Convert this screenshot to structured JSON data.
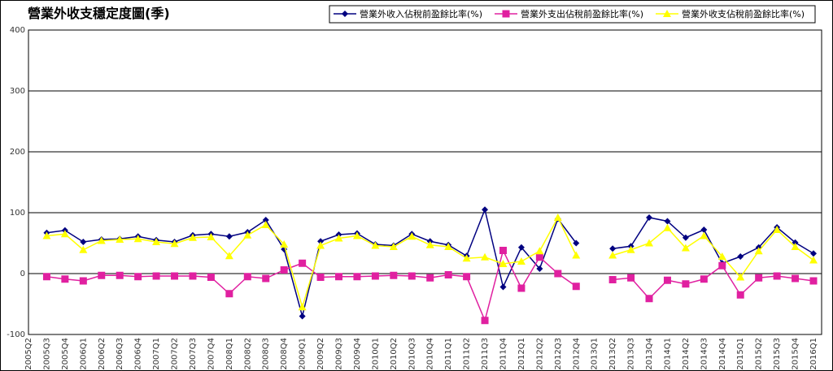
{
  "chart_data": {
    "type": "line",
    "title": "營業外收支穩定度圖(季)",
    "categories": [
      "2005Q2",
      "2005Q3",
      "2005Q4",
      "2006Q1",
      "2006Q2",
      "2006Q3",
      "2006Q4",
      "2007Q1",
      "2007Q2",
      "2007Q3",
      "2007Q4",
      "2008Q1",
      "2008Q2",
      "2008Q3",
      "2008Q4",
      "2009Q1",
      "2009Q2",
      "2009Q3",
      "2009Q4",
      "2010Q1",
      "2010Q2",
      "2010Q3",
      "2010Q4",
      "2011Q1",
      "2011Q2",
      "2011Q3",
      "2011Q4",
      "2012Q1",
      "2012Q2",
      "2012Q3",
      "2012Q4",
      "2013Q1",
      "2013Q2",
      "2013Q3",
      "2013Q4",
      "2014Q1",
      "2014Q2",
      "2014Q3",
      "2014Q4",
      "2015Q1",
      "2015Q2",
      "2015Q3",
      "2015Q4",
      "2016Q1"
    ],
    "series": [
      {
        "name": "營業外收入佔稅前盈餘比率(%)",
        "color": "#000080",
        "marker": "diamond",
        "values": [
          null,
          67,
          71,
          52,
          56,
          57,
          61,
          55,
          52,
          63,
          65,
          61,
          68,
          88,
          40,
          -70,
          53,
          64,
          66,
          48,
          46,
          65,
          53,
          47,
          29,
          105,
          -22,
          43,
          8,
          90,
          50,
          null,
          41,
          45,
          92,
          86,
          59,
          72,
          17,
          28,
          43,
          76,
          51,
          33
        ]
      },
      {
        "name": "營業外支出佔稅前盈餘比率(%)",
        "color": "#e020a0",
        "marker": "square",
        "values": [
          null,
          -5,
          -9,
          -12,
          -3,
          -3,
          -5,
          -4,
          -4,
          -4,
          -6,
          -33,
          -5,
          -8,
          6,
          17,
          -6,
          -5,
          -5,
          -4,
          -3,
          -4,
          -7,
          -2,
          -5,
          -77,
          38,
          -24,
          27,
          0,
          -21,
          null,
          -10,
          -7,
          -41,
          -11,
          -17,
          -9,
          13,
          -35,
          -7,
          -4,
          -8,
          -12
        ]
      },
      {
        "name": "營業外收支佔稅前盈餘比率(%)",
        "color": "#ffff00",
        "marker": "triangle",
        "values": [
          null,
          62,
          65,
          39,
          54,
          56,
          57,
          52,
          49,
          59,
          60,
          29,
          63,
          80,
          48,
          -55,
          46,
          58,
          62,
          46,
          44,
          61,
          47,
          44,
          25,
          27,
          16,
          20,
          37,
          92,
          30,
          null,
          30,
          39,
          50,
          75,
          42,
          62,
          28,
          -6,
          37,
          72,
          44,
          22
        ]
      }
    ],
    "ylim": [
      -100,
      400
    ],
    "yticks": [
      -100,
      0,
      100,
      200,
      300,
      400
    ],
    "grid": true,
    "legend": "top-right"
  }
}
